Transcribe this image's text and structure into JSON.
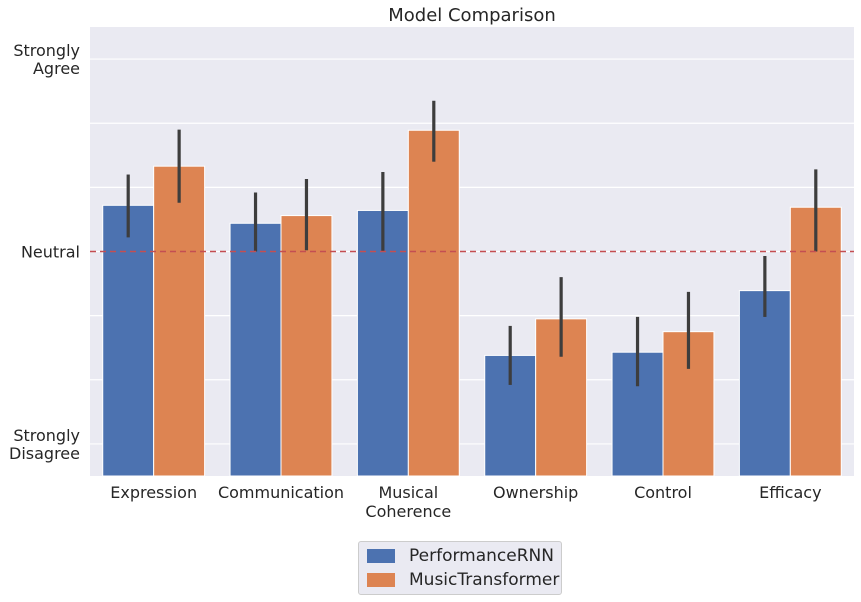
{
  "chart_data": {
    "type": "bar",
    "title": "Model Comparison",
    "xlabel": "",
    "ylabel": "",
    "categories": [
      "Expression",
      "Communication",
      "Musical\nCoherence",
      "Ownership",
      "Control",
      "Efficacy"
    ],
    "ylim": [
      0.5,
      7.5
    ],
    "yticks": [
      1,
      2,
      3,
      4,
      5,
      6,
      7
    ],
    "ytick_labels": {
      "1": "Strongly\nDisagree",
      "4": "Neutral",
      "7": "Strongly\nAgree"
    },
    "reference_line": {
      "y": 4,
      "style": "dashed",
      "color": "#c44e52"
    },
    "grid": true,
    "series": [
      {
        "name": "PerformanceRNN",
        "color": "#4c72b0",
        "values": [
          4.72,
          4.44,
          4.64,
          2.38,
          2.43,
          3.39
        ],
        "ci_low": [
          4.22,
          4.0,
          4.0,
          1.92,
          1.9,
          2.98
        ],
        "ci_high": [
          5.2,
          4.92,
          5.24,
          2.84,
          2.98,
          3.93
        ]
      },
      {
        "name": "MusicTransformer",
        "color": "#dd8452",
        "values": [
          5.33,
          4.56,
          5.89,
          2.95,
          2.75,
          4.69
        ],
        "ci_low": [
          4.76,
          4.02,
          5.4,
          2.36,
          2.17,
          4.0
        ],
        "ci_high": [
          5.9,
          5.13,
          6.35,
          3.6,
          3.37,
          5.28
        ]
      }
    ],
    "legend": {
      "position": "bottom-center",
      "entries": [
        "PerformanceRNN",
        "MusicTransformer"
      ]
    }
  }
}
